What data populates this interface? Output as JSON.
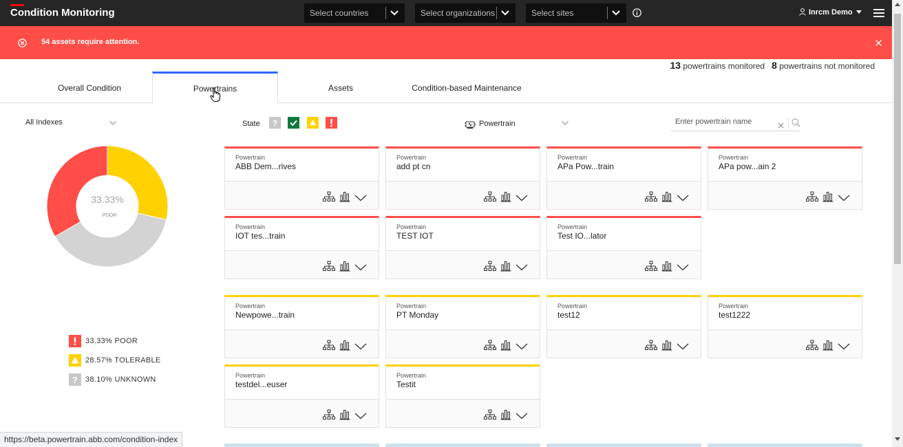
{
  "header": {
    "title": "Condition Monitoring",
    "countries_placeholder": "Select countries",
    "organizations_placeholder": "Select organizations",
    "sites_placeholder": "Select sites",
    "user_name": "Inrcm Demo",
    "accent_color": "#ff000f"
  },
  "alert": {
    "message": "54 assets require attention.",
    "color": "#ff4d47"
  },
  "monitoring": {
    "monitored_count": "13",
    "monitored_label": "powertrains monitored",
    "not_monitored_count": "8",
    "not_monitored_label": "powertrains not monitored"
  },
  "tabs": [
    {
      "label": "Overall Condition"
    },
    {
      "label": "Powertrains"
    },
    {
      "label": "Assets"
    },
    {
      "label": "Condition-based Maintenance"
    }
  ],
  "active_tab": "Powertrains",
  "index_selector": {
    "value": "All Indexes"
  },
  "donut": {
    "center_value": "33.33%",
    "center_label": "POOR",
    "segments": [
      {
        "status": "poor",
        "percent": 33.33,
        "color": "#ff4d47"
      },
      {
        "status": "tolerable",
        "percent": 28.57,
        "color": "#ffd100"
      },
      {
        "status": "unknown",
        "percent": 38.1,
        "color": "#d3d3d3"
      }
    ]
  },
  "legend": [
    {
      "icon": "poor-icon",
      "text": "33.33% POOR",
      "color": "#ff4d47"
    },
    {
      "icon": "tolerable-icon",
      "text": "28.57% TOLERABLE",
      "color": "#ffd100"
    },
    {
      "icon": "unknown-icon",
      "text": "38.10% UNKNOWN",
      "color": "#c8c8c8"
    }
  ],
  "filters": {
    "state_label": "State",
    "type_filter_value": "Powertrain",
    "search_placeholder": "Enter powertrain name"
  },
  "cards": [
    {
      "type": "Powertrain",
      "name": "ABB Dem...rives",
      "status": "poor"
    },
    {
      "type": "Powertrain",
      "name": "add pt cn",
      "status": "poor"
    },
    {
      "type": "Powertrain",
      "name": "APa Pow...train",
      "status": "poor"
    },
    {
      "type": "Powertrain",
      "name": "APa pow...ain 2",
      "status": "poor"
    },
    {
      "type": "Powertrain",
      "name": "IOT tes...train",
      "status": "poor"
    },
    {
      "type": "Powertrain",
      "name": "TEST IOT",
      "status": "poor"
    },
    {
      "type": "Powertrain",
      "name": "Test IO...lator",
      "status": "poor"
    },
    {
      "type": "Powertrain",
      "name": "Newpowe...train",
      "status": "tolerable"
    },
    {
      "type": "Powertrain",
      "name": "PT Monday",
      "status": "tolerable"
    },
    {
      "type": "Powertrain",
      "name": "test12",
      "status": "tolerable"
    },
    {
      "type": "Powertrain",
      "name": "test1222",
      "status": "tolerable"
    },
    {
      "type": "Powertrain",
      "name": "testdel...euser",
      "status": "tolerable"
    },
    {
      "type": "Powertrain",
      "name": "Testit",
      "status": "tolerable"
    }
  ],
  "status_bar_url": "https://beta.powertrain.abb.com/condition-index"
}
